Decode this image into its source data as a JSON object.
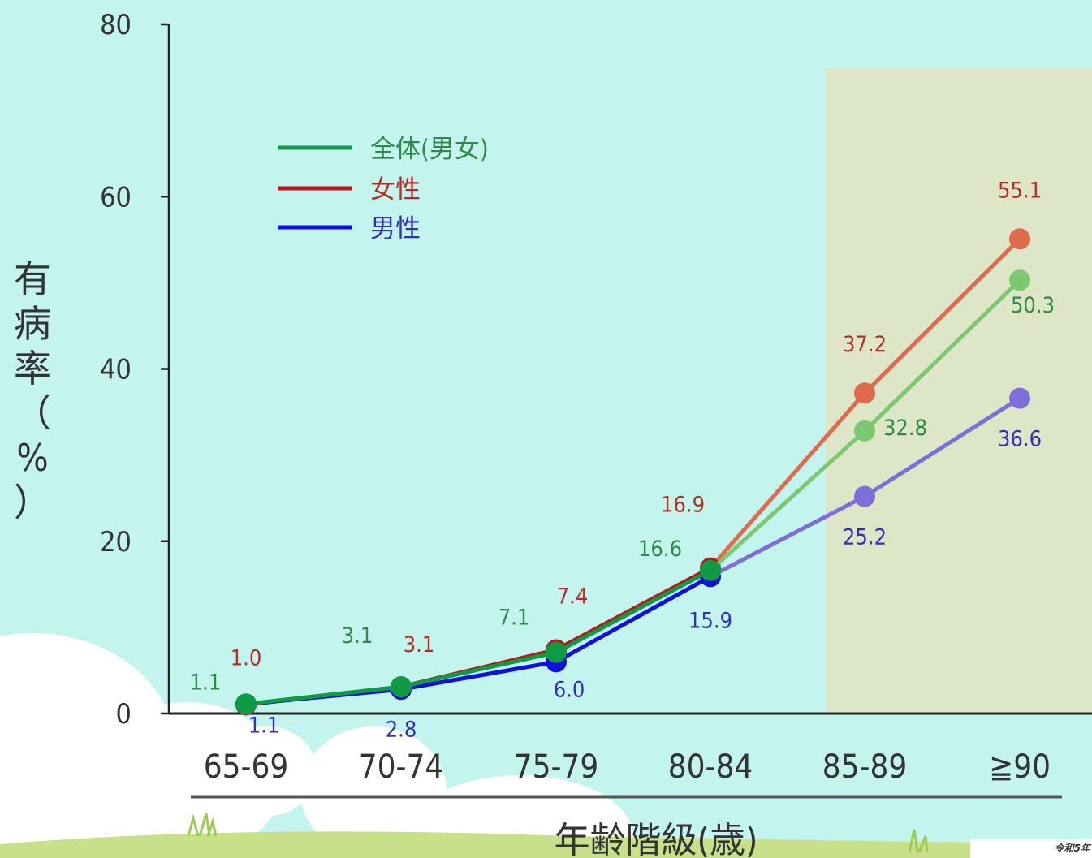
{
  "chart_data": {
    "type": "line",
    "ylabel": "有病率（%）",
    "xlabel": "年齢階級(歳)",
    "categories": [
      "65-69",
      "70-74",
      "75-79",
      "80-84",
      "85-89",
      "≧90"
    ],
    "yticks": [
      "0",
      "20",
      "40",
      "60",
      "80"
    ],
    "ylim": [
      0,
      80
    ],
    "grid": false,
    "legend_position": "top-left",
    "highlight_categories": [
      "85-89",
      "≧90"
    ],
    "series": [
      {
        "name": "全体(男女)",
        "color": "#0f9a44",
        "highlight_color": "#7cc870",
        "label_color": "#2e8a4a",
        "values": [
          1.1,
          3.1,
          7.1,
          16.6,
          32.8,
          50.3
        ],
        "labels": [
          "1.1",
          "3.1",
          "7.1",
          "16.6",
          "32.8",
          "50.3"
        ]
      },
      {
        "name": "女性",
        "color": "#b8181b",
        "highlight_color": "#e06a4e",
        "label_color": "#b03028",
        "values": [
          1.0,
          3.1,
          7.4,
          16.9,
          37.2,
          55.1
        ],
        "labels": [
          "1.0",
          "3.1",
          "7.4",
          "16.9",
          "37.2",
          "55.1"
        ]
      },
      {
        "name": "男性",
        "color": "#1010dd",
        "highlight_color": "#7e6ed8",
        "label_color": "#3030b8",
        "values": [
          1.1,
          2.8,
          6.0,
          15.9,
          25.2,
          36.6
        ],
        "labels": [
          "1.1",
          "2.8",
          "6.0",
          "15.9",
          "25.2",
          "36.6"
        ]
      }
    ]
  },
  "footnote": "令和5年"
}
